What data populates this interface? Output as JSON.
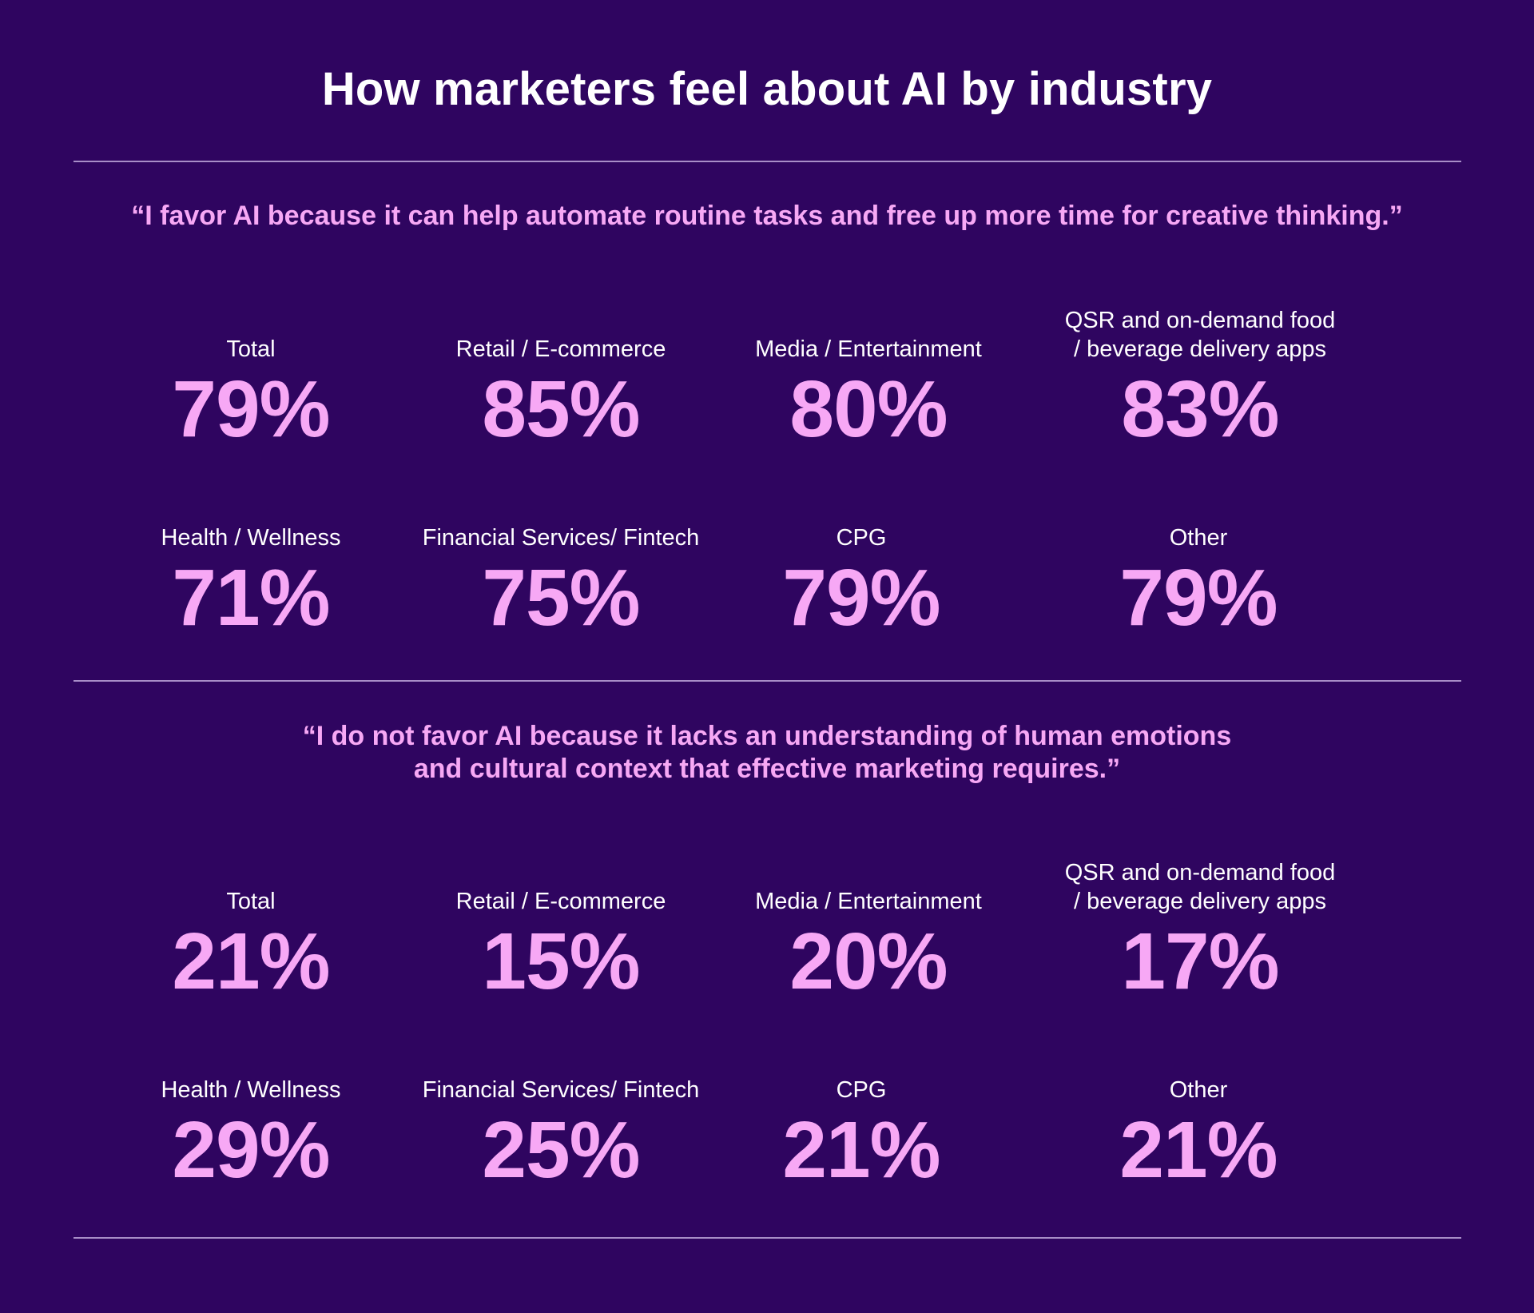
{
  "title": "How marketers feel about AI by industry",
  "colors": {
    "background": "#2f0560",
    "accent": "#f7a8f5",
    "text": "#ffffff",
    "rule": "#a88ec8"
  },
  "chart_data": [
    {
      "type": "table",
      "title": "“I favor AI because it can help automate routine tasks and free up more time for creative thinking.”",
      "unit": "%",
      "categories": [
        "Total",
        "Retail / E-commerce",
        "Media / Entertainment",
        "QSR and on-demand food / beverage delivery apps",
        "Health / Wellness",
        "Financial Services/ Fintech",
        "CPG",
        "Other"
      ],
      "values": [
        79,
        85,
        80,
        83,
        71,
        75,
        79,
        79
      ]
    },
    {
      "type": "table",
      "title": "“I do not favor AI because it lacks an understanding of human emotions and cultural context that effective marketing requires.”",
      "unit": "%",
      "categories": [
        "Total",
        "Retail / E-commerce",
        "Media / Entertainment",
        "QSR and on-demand food / beverage delivery apps",
        "Health / Wellness",
        "Financial Services/ Fintech",
        "CPG",
        "Other"
      ],
      "values": [
        21,
        15,
        20,
        17,
        29,
        25,
        21,
        21
      ]
    }
  ],
  "sections": [
    {
      "quote_lines": [
        "“I favor AI because it can help automate routine tasks and free up more time for creative thinking.”"
      ],
      "stats": [
        {
          "label_lines": [
            "Total"
          ],
          "value": "79%"
        },
        {
          "label_lines": [
            "Retail / E-commerce"
          ],
          "value": "85%"
        },
        {
          "label_lines": [
            "Media / Entertainment"
          ],
          "value": "80%"
        },
        {
          "label_lines": [
            "QSR and on-demand food",
            "/ beverage delivery apps"
          ],
          "value": "83%"
        },
        {
          "label_lines": [
            "Health / Wellness"
          ],
          "value": "71%"
        },
        {
          "label_lines": [
            "Financial Services/ Fintech"
          ],
          "value": "75%"
        },
        {
          "label_lines": [
            "CPG"
          ],
          "value": "79%"
        },
        {
          "label_lines": [
            "Other"
          ],
          "value": "79%"
        }
      ]
    },
    {
      "quote_lines": [
        "“I do not favor AI because it lacks an understanding of human emotions",
        "and cultural context that effective marketing requires.”"
      ],
      "stats": [
        {
          "label_lines": [
            "Total"
          ],
          "value": "21%"
        },
        {
          "label_lines": [
            "Retail / E-commerce"
          ],
          "value": "15%"
        },
        {
          "label_lines": [
            "Media / Entertainment"
          ],
          "value": "20%"
        },
        {
          "label_lines": [
            "QSR and on-demand food",
            "/ beverage delivery apps"
          ],
          "value": "17%"
        },
        {
          "label_lines": [
            "Health / Wellness"
          ],
          "value": "29%"
        },
        {
          "label_lines": [
            "Financial Services/ Fintech"
          ],
          "value": "25%"
        },
        {
          "label_lines": [
            "CPG"
          ],
          "value": "21%"
        },
        {
          "label_lines": [
            "Other"
          ],
          "value": "21%"
        }
      ]
    }
  ]
}
